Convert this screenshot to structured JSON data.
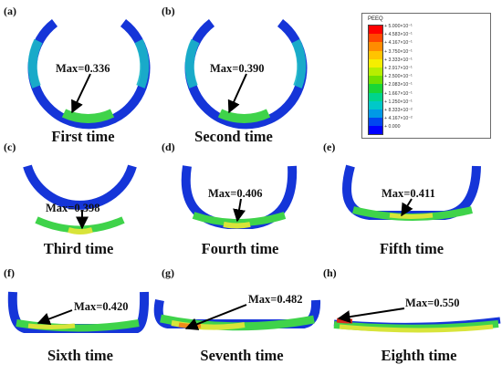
{
  "figure": {
    "panels": [
      {
        "letter": "(a)",
        "max_label": "Max=0.336",
        "caption": "First time"
      },
      {
        "letter": "(b)",
        "max_label": "Max=0.390",
        "caption": "Second time"
      },
      {
        "letter": "(c)",
        "max_label": "Max=0.398",
        "caption": "Third time"
      },
      {
        "letter": "(d)",
        "max_label": "Max=0.406",
        "caption": "Fourth time"
      },
      {
        "letter": "(e)",
        "max_label": "Max=0.411",
        "caption": "Fifth time"
      },
      {
        "letter": "(f)",
        "max_label": "Max=0.420",
        "caption": "Sixth time"
      },
      {
        "letter": "(g)",
        "max_label": "Max=0.482",
        "caption": "Seventh time"
      },
      {
        "letter": "(h)",
        "max_label": "Max=0.550",
        "caption": "Eighth time"
      }
    ],
    "legend": {
      "title": "PEEQ",
      "entries": [
        {
          "label": "+ 5.000×10⁻¹",
          "color": "#ff0000"
        },
        {
          "label": "+ 4.583×10⁻¹",
          "color": "#ff4800"
        },
        {
          "label": "+ 4.167×10⁻¹",
          "color": "#ff8c00"
        },
        {
          "label": "+ 3.750×10⁻¹",
          "color": "#ffc400"
        },
        {
          "label": "+ 3.333×10⁻¹",
          "color": "#f5ee00"
        },
        {
          "label": "+ 2.917×10⁻¹",
          "color": "#b6ee00"
        },
        {
          "label": "+ 2.500×10⁻¹",
          "color": "#6fe000"
        },
        {
          "label": "+ 2.083×10⁻¹",
          "color": "#19d636"
        },
        {
          "label": "+ 1.667×10⁻¹",
          "color": "#00d48c"
        },
        {
          "label": "+ 1.250×10⁻¹",
          "color": "#00c8c8"
        },
        {
          "label": "+ 8.333×10⁻²",
          "color": "#0099e6"
        },
        {
          "label": "+ 4.167×10⁻²",
          "color": "#0046f0"
        },
        {
          "label": "+ 0.000",
          "color": "#0000ff"
        }
      ]
    },
    "colors": {
      "ring_blue": "#1535d8",
      "ring_cyan": "#19b7c8",
      "ring_green": "#3fd34a",
      "ring_yellow": "#d8e43a",
      "ring_orange": "#f28a1b",
      "ring_red": "#d92b1f",
      "arrow": "#000000"
    }
  }
}
